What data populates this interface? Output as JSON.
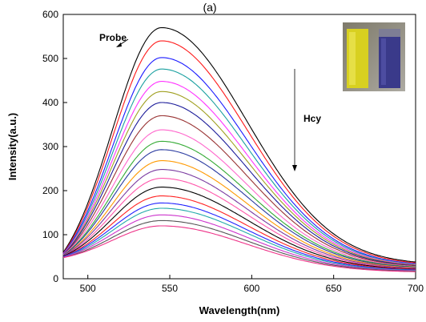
{
  "chart_data": {
    "type": "line",
    "panel_label": "(a)",
    "xlabel": "Wavelength(nm)",
    "ylabel": "Intensity(a.u.)",
    "xlim": [
      485,
      700
    ],
    "ylim": [
      0,
      600
    ],
    "x_ticks": [
      500,
      550,
      600,
      650,
      700
    ],
    "y_ticks": [
      0,
      100,
      200,
      300,
      400,
      500,
      600
    ],
    "grid": false,
    "annotations": {
      "probe_label": "Probe",
      "analyte_label": "Hcy"
    },
    "inset": {
      "description_color_left": "#d8d020",
      "description_color_right": "#3a3a8a"
    },
    "curve_model": {
      "peak_wavelength": 545,
      "start_wavelength": 485,
      "end_wavelength": 700
    },
    "series": [
      {
        "peak": 570,
        "start": 60,
        "end": 38,
        "color": "#000000"
      },
      {
        "peak": 540,
        "start": 58,
        "end": 36,
        "color": "#ff1a1a"
      },
      {
        "peak": 502,
        "start": 57,
        "end": 34,
        "color": "#1a1aff"
      },
      {
        "peak": 476,
        "start": 56,
        "end": 33,
        "color": "#1aa0a0"
      },
      {
        "peak": 448,
        "start": 56,
        "end": 32,
        "color": "#ff33ff"
      },
      {
        "peak": 425,
        "start": 55,
        "end": 31,
        "color": "#a0a020"
      },
      {
        "peak": 400,
        "start": 55,
        "end": 30,
        "color": "#1a1a99"
      },
      {
        "peak": 370,
        "start": 54,
        "end": 29,
        "color": "#993333"
      },
      {
        "peak": 338,
        "start": 54,
        "end": 28,
        "color": "#ff66cc"
      },
      {
        "peak": 312,
        "start": 53,
        "end": 27,
        "color": "#33aa33"
      },
      {
        "peak": 293,
        "start": 53,
        "end": 26,
        "color": "#2a3aa0"
      },
      {
        "peak": 268,
        "start": 52,
        "end": 25,
        "color": "#ff9900"
      },
      {
        "peak": 248,
        "start": 52,
        "end": 24,
        "color": "#7a3aa0"
      },
      {
        "peak": 228,
        "start": 51,
        "end": 23,
        "color": "#ff55aa"
      },
      {
        "peak": 208,
        "start": 51,
        "end": 22,
        "color": "#000000"
      },
      {
        "peak": 188,
        "start": 50,
        "end": 21,
        "color": "#ff2222"
      },
      {
        "peak": 172,
        "start": 50,
        "end": 20,
        "color": "#2222ff"
      },
      {
        "peak": 160,
        "start": 49,
        "end": 19,
        "color": "#22aaaa"
      },
      {
        "peak": 145,
        "start": 49,
        "end": 18,
        "color": "#cc33cc"
      },
      {
        "peak": 132,
        "start": 48,
        "end": 17,
        "color": "#555555"
      },
      {
        "peak": 120,
        "start": 48,
        "end": 16,
        "color": "#ee3388"
      }
    ]
  }
}
